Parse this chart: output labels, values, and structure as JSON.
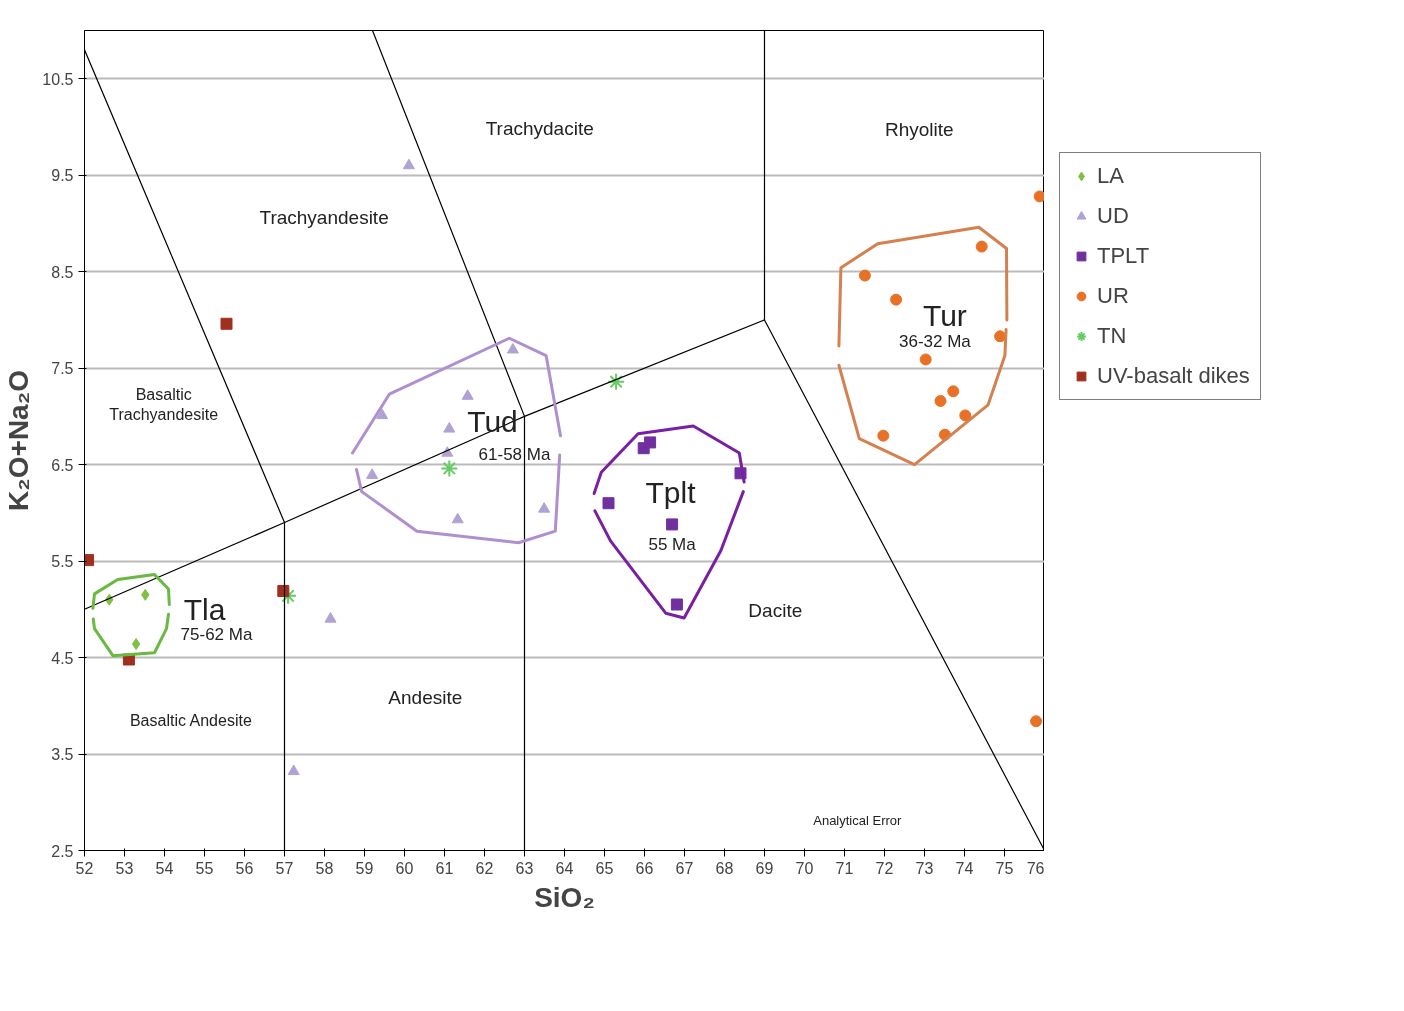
{
  "chart_data": {
    "type": "scatter",
    "xlabel": "SiO₂",
    "ylabel": "K₂O+Na₂O",
    "xlim": [
      52,
      76
    ],
    "ylim": [
      2.5,
      11
    ],
    "xticks": [
      52,
      53,
      54,
      55,
      56,
      57,
      58,
      59,
      60,
      61,
      62,
      63,
      64,
      65,
      66,
      67,
      68,
      69,
      70,
      71,
      72,
      73,
      74,
      75,
      76
    ],
    "yticks": [
      2.5,
      3.5,
      4.5,
      5.5,
      6.5,
      7.5,
      8.5,
      9.5,
      10.5
    ],
    "grid": "y",
    "legend": "right",
    "series": [
      {
        "name": "LA",
        "color": "#7fc241",
        "marker": "diamond",
        "x": [
          52.62,
          53.52,
          53.29
        ],
        "values": [
          5.1,
          5.15,
          4.64
        ]
      },
      {
        "name": "UD",
        "color": "#b0a2d4",
        "marker": "triangle",
        "x": [
          60.11,
          62.71,
          61.58,
          59.44,
          61.12,
          61.07,
          59.19,
          61.33,
          63.49,
          58.15,
          57.23
        ],
        "values": [
          9.6,
          7.69,
          7.21,
          7.01,
          6.87,
          6.62,
          6.39,
          5.93,
          6.04,
          4.9,
          3.32
        ]
      },
      {
        "name": "TPLT",
        "color": "#7030a0",
        "marker": "square",
        "x": [
          65.98,
          66.14,
          68.4,
          65.1,
          66.69,
          66.81
        ],
        "values": [
          6.67,
          6.73,
          6.41,
          6.1,
          5.88,
          5.05
        ]
      },
      {
        "name": "UR",
        "color": "#e97125",
        "marker": "circle",
        "x": [
          75.88,
          71.51,
          74.43,
          72.29,
          74.89,
          73.03,
          73.72,
          73.4,
          74.02,
          73.51,
          71.97,
          75.79
        ],
        "values": [
          9.28,
          8.46,
          8.76,
          8.21,
          7.83,
          7.59,
          7.26,
          7.16,
          7.01,
          6.81,
          6.8,
          3.84
        ]
      },
      {
        "name": "TN",
        "color": "#66cc66",
        "marker": "cross",
        "x": [
          61.12,
          65.29,
          57.09
        ],
        "values": [
          6.46,
          7.36,
          5.14
        ]
      },
      {
        "name": "UV-basalt dikes",
        "color": "#a0301e",
        "marker": "square",
        "x": [
          55.55,
          52.09,
          56.97,
          53.11
        ],
        "values": [
          7.96,
          5.51,
          5.19,
          4.48
        ]
      },
      {
        "type": "line",
        "color": "#000000",
        "x": [
          52,
          57,
          57
        ],
        "values": [
          10.8,
          5.9,
          2.5
        ]
      },
      {
        "type": "line",
        "color": "#000000",
        "x": [
          59.2,
          63,
          63
        ],
        "values": [
          11.0,
          7.0,
          2.5
        ]
      },
      {
        "type": "line",
        "color": "#000000",
        "x": [
          52,
          57,
          63,
          69,
          69
        ],
        "values": [
          5.0,
          5.9,
          7.0,
          8.0,
          11.0
        ]
      },
      {
        "type": "line",
        "color": "#000000",
        "x": [
          69,
          76
        ],
        "values": [
          8.0,
          2.5
        ]
      },
      {
        "type": "line",
        "color": "#6ab942",
        "x": [
          52.21,
          52.25,
          52.83,
          53.75,
          54.1,
          54.12
        ],
        "values": [
          5.01,
          5.16,
          5.31,
          5.36,
          5.21,
          5.05
        ]
      },
      {
        "type": "line",
        "color": "#6ab942",
        "x": [
          52.22,
          52.25,
          52.71,
          53.75,
          54.05,
          54.1
        ],
        "values": [
          4.9,
          4.8,
          4.52,
          4.55,
          4.8,
          4.95
        ]
      },
      {
        "type": "line",
        "color": "#b08fcf",
        "x": [
          58.7,
          59.62,
          62.62,
          63.54,
          63.9
        ],
        "values": [
          6.62,
          7.23,
          7.81,
          7.63,
          6.8
        ]
      },
      {
        "type": "line",
        "color": "#b08fcf",
        "x": [
          58.8,
          58.93,
          60.31,
          62.85,
          63.77,
          63.88
        ],
        "values": [
          6.45,
          6.22,
          5.81,
          5.69,
          5.81,
          6.6
        ]
      },
      {
        "type": "line",
        "color": "#7a1fa2",
        "x": [
          64.74,
          64.92,
          65.84,
          67.22,
          68.37,
          68.49
        ],
        "values": [
          6.2,
          6.42,
          6.82,
          6.9,
          6.62,
          6.32
        ]
      },
      {
        "type": "line",
        "color": "#7a1fa2",
        "x": [
          64.76,
          65.15,
          66.53,
          66.99,
          67.91,
          68.47
        ],
        "values": [
          6.02,
          5.71,
          4.96,
          4.91,
          5.61,
          6.22
        ]
      },
      {
        "type": "line",
        "color": "#d4804f",
        "x": [
          70.86,
          70.91,
          71.83,
          74.36,
          75.05,
          75.06
        ],
        "values": [
          7.73,
          8.54,
          8.79,
          8.96,
          8.74,
          8.0
        ]
      },
      {
        "type": "line",
        "color": "#d4804f",
        "x": [
          70.86,
          71.37,
          72.75,
          74.59,
          75.01,
          75.04
        ],
        "values": [
          7.53,
          6.77,
          6.5,
          7.12,
          7.63,
          7.9
        ]
      }
    ],
    "annotations": [
      "Trachydacite",
      "Rhyolite",
      "Trachyandesite",
      "Basaltic\nTrachyandesite",
      "Basaltic Andesite",
      "Andesite",
      "Dacite",
      "Tla",
      "75-62 Ma",
      "Tud",
      "61-58 Ma",
      "Tplt",
      "55 Ma",
      "Tur",
      "36-32 Ma",
      "Analytical Error"
    ]
  }
}
